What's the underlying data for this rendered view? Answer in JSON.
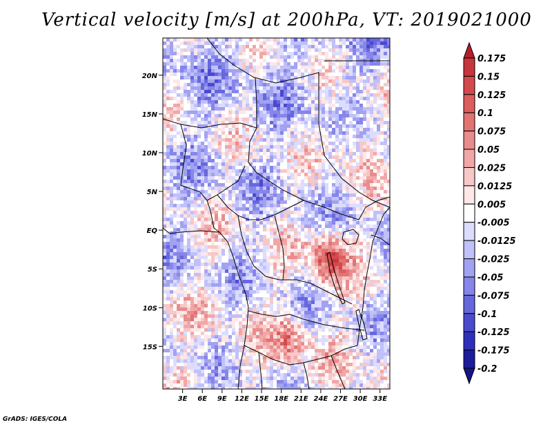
{
  "title": "Vertical velocity [m/s] at 200hPa, VT: 2019021000",
  "credit": "GrADS: IGES/COLA",
  "map": {
    "lon_range": [
      0,
      34.5
    ],
    "lat_range": [
      -20.5,
      24.8
    ],
    "lat_ticks": [
      {
        "value": 20,
        "label": "20N"
      },
      {
        "value": 15,
        "label": "15N"
      },
      {
        "value": 10,
        "label": "10N"
      },
      {
        "value": 5,
        "label": "5N"
      },
      {
        "value": 0,
        "label": "EQ"
      },
      {
        "value": -5,
        "label": "5S"
      },
      {
        "value": -10,
        "label": "10S"
      },
      {
        "value": -15,
        "label": "15S"
      }
    ],
    "lon_ticks": [
      {
        "value": 3,
        "label": "3E"
      },
      {
        "value": 6,
        "label": "6E"
      },
      {
        "value": 9,
        "label": "9E"
      },
      {
        "value": 12,
        "label": "12E"
      },
      {
        "value": 15,
        "label": "15E"
      },
      {
        "value": 18,
        "label": "18E"
      },
      {
        "value": 21,
        "label": "21E"
      },
      {
        "value": 24,
        "label": "24E"
      },
      {
        "value": 27,
        "label": "27E"
      },
      {
        "value": 30,
        "label": "30E"
      },
      {
        "value": 33,
        "label": "33E"
      }
    ]
  },
  "colorbar": {
    "labels": [
      "0.175",
      "0.15",
      "0.125",
      "0.1",
      "0.075",
      "0.05",
      "0.025",
      "0.0125",
      "0.005",
      "-0.005",
      "-0.0125",
      "-0.025",
      "-0.05",
      "-0.075",
      "-0.1",
      "-0.125",
      "-0.175",
      "-0.2"
    ],
    "colors": [
      "#b41f2a",
      "#c8363d",
      "#d5494d",
      "#dc5d5e",
      "#e27373",
      "#e98c8c",
      "#f2a7a7",
      "#f7c8c8",
      "#fde7e7",
      "#ffffff",
      "#dcdcff",
      "#c0c0fa",
      "#a2a2f2",
      "#8585ea",
      "#6767dd",
      "#4a4acf",
      "#2f2fbe",
      "#1c1c9e",
      "#14148a"
    ]
  }
}
